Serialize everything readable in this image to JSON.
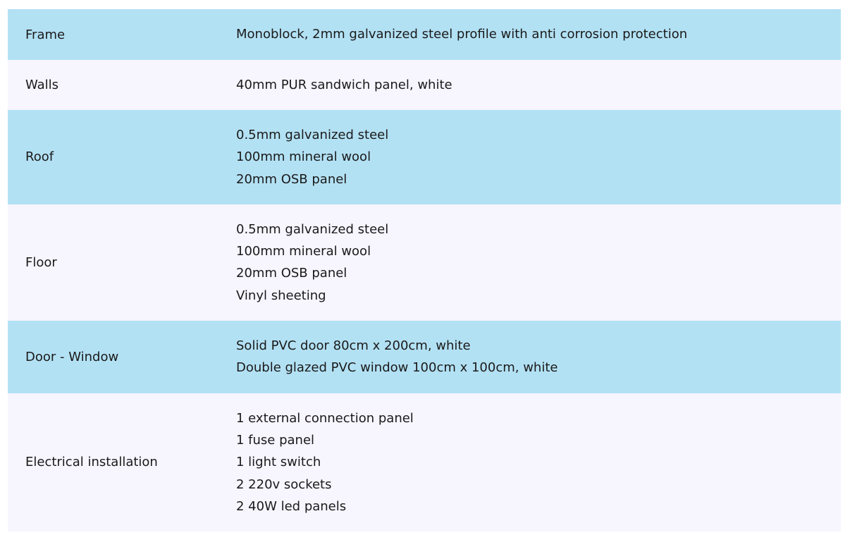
{
  "colors": {
    "row_odd": "#b3e1f4",
    "row_even": "#f7f5fe"
  },
  "rows": [
    {
      "label": "Frame",
      "lines": [
        "Monoblock, 2mm galvanized steel profile with anti corrosion protection"
      ]
    },
    {
      "label": "Walls",
      "lines": [
        "40mm PUR sandwich panel, white"
      ]
    },
    {
      "label": "Roof",
      "lines": [
        "0.5mm galvanized steel",
        "100mm mineral wool",
        "20mm OSB panel"
      ]
    },
    {
      "label": "Floor",
      "lines": [
        "0.5mm galvanized steel",
        "100mm mineral wool",
        "20mm OSB panel",
        "Vinyl sheeting"
      ]
    },
    {
      "label": "Door - Window",
      "lines": [
        "Solid PVC door 80cm x 200cm, white",
        "Double glazed PVC window 100cm x 100cm, white"
      ]
    },
    {
      "label": "Electrical installation",
      "lines": [
        "1 external connection panel",
        "1 fuse panel",
        "1 light switch",
        "2 220v sockets",
        "2 40W led panels"
      ]
    }
  ]
}
